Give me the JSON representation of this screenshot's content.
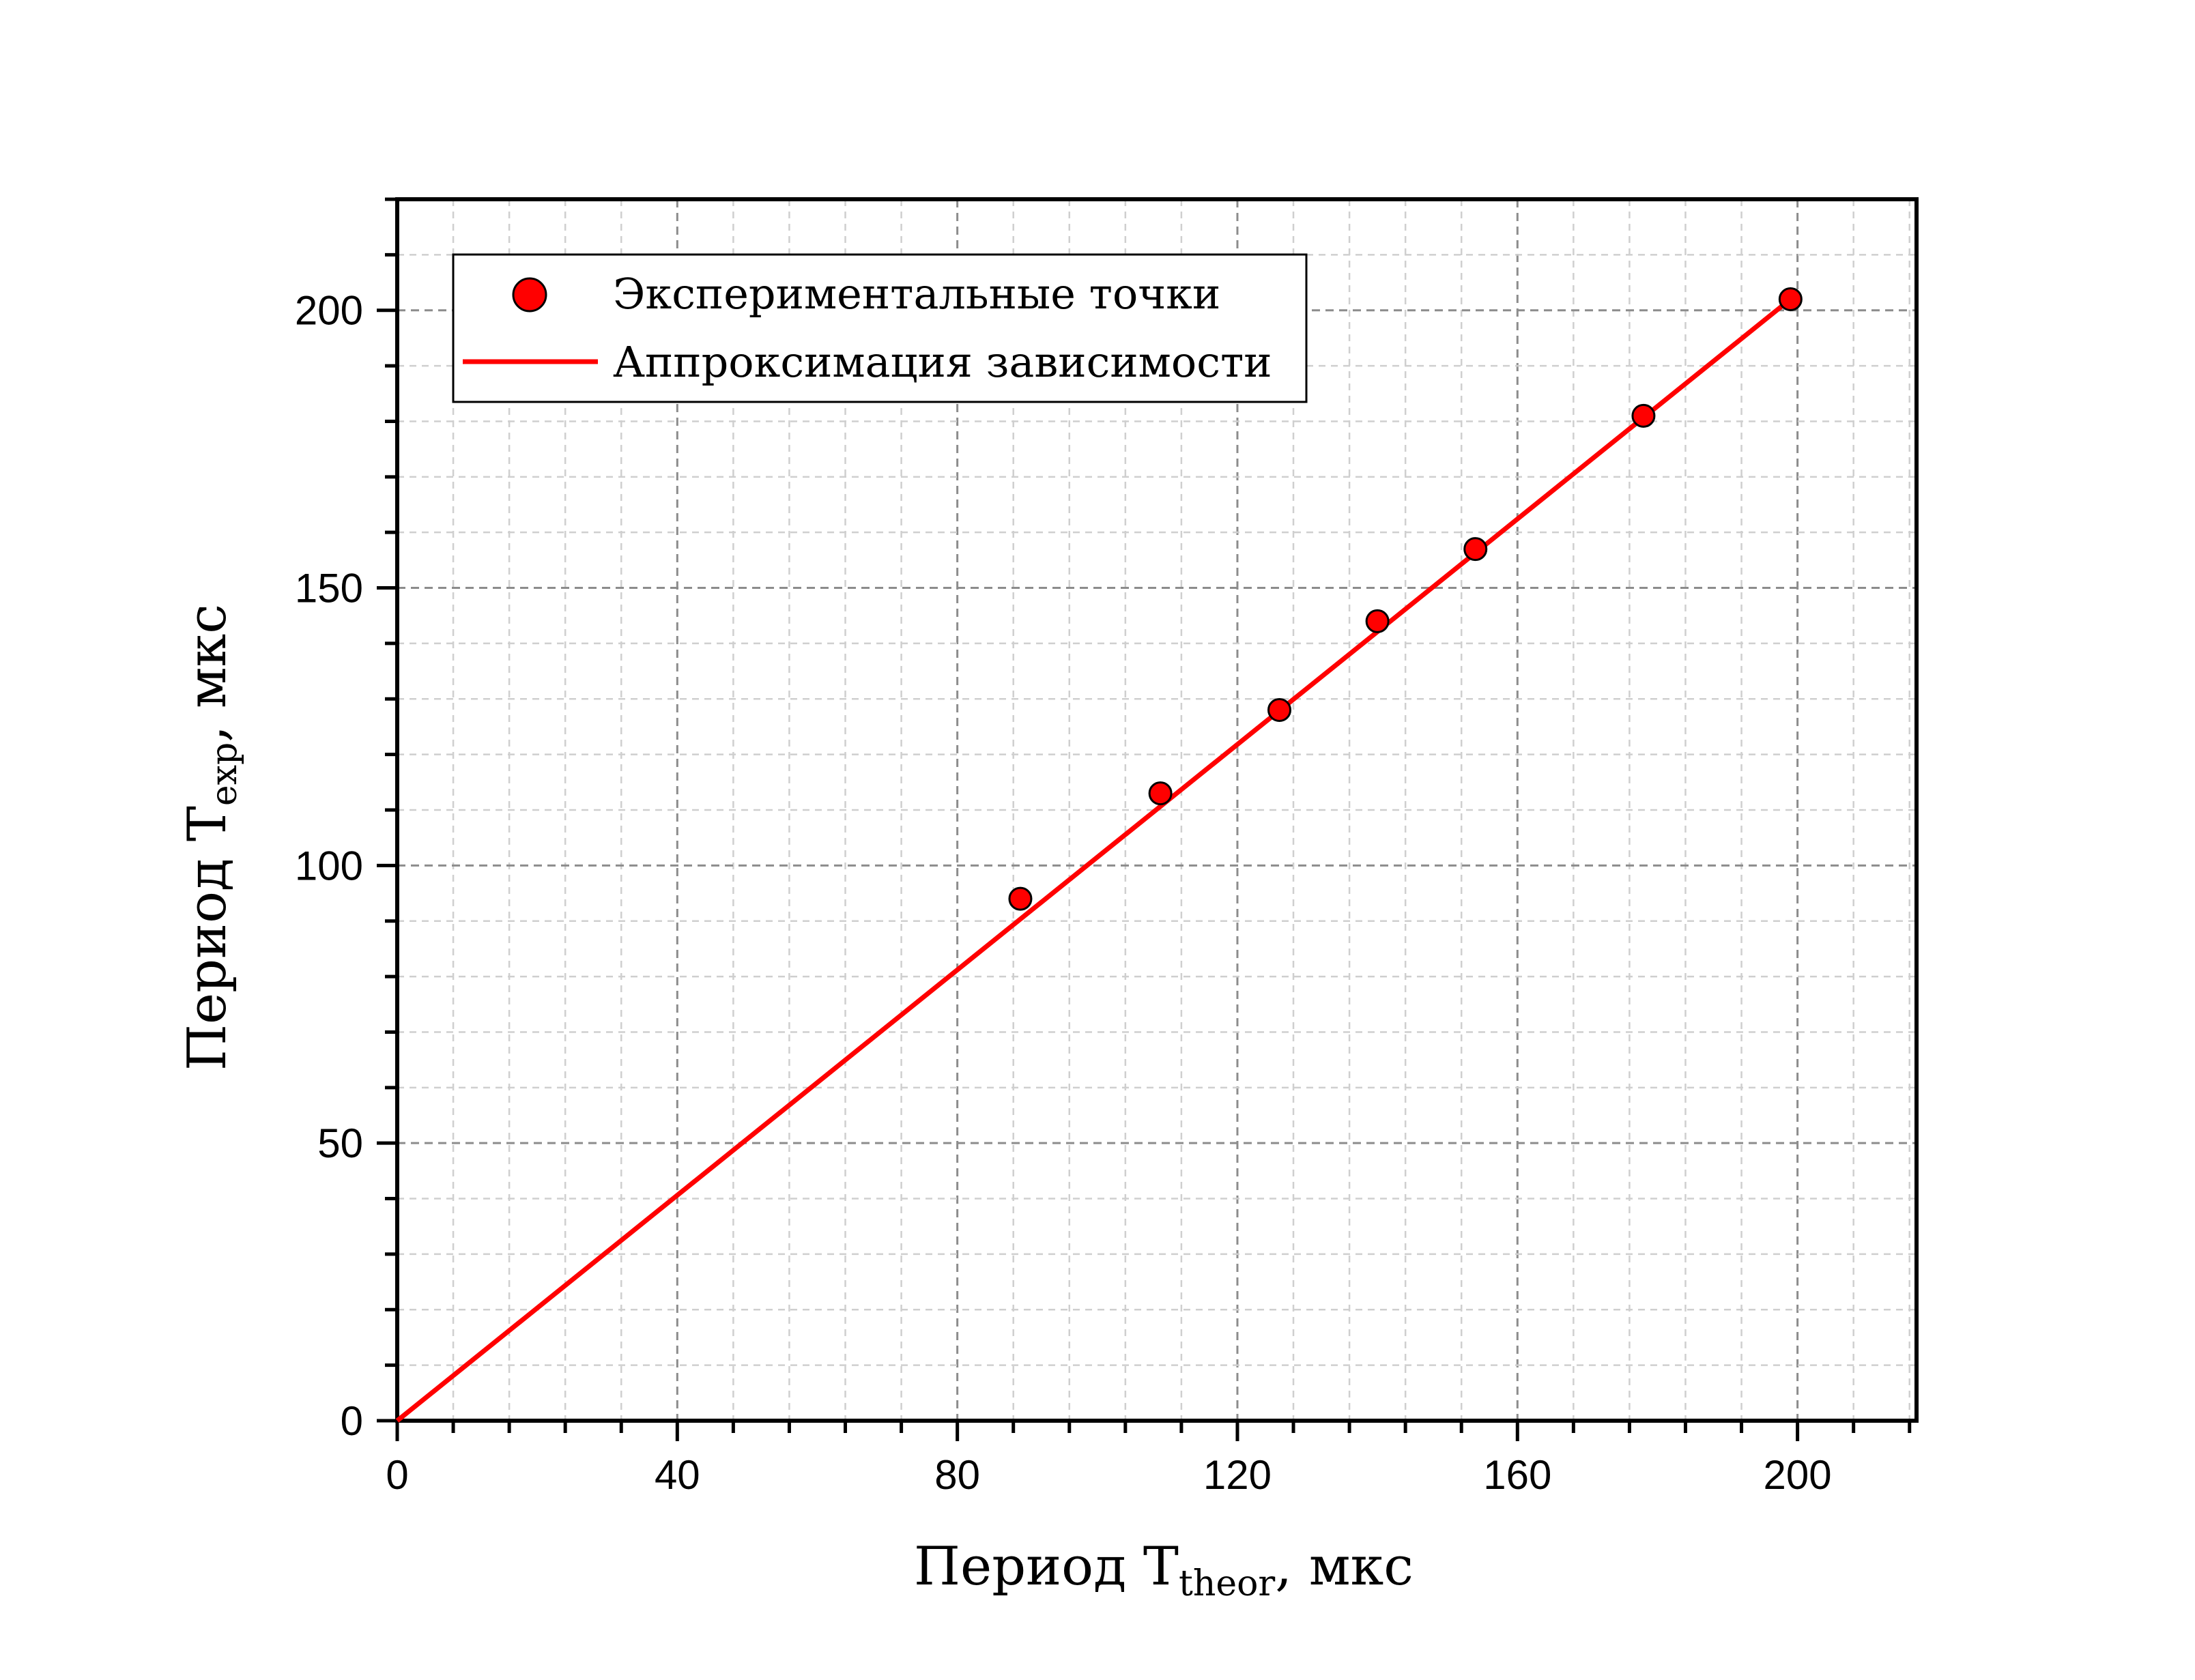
{
  "chart_data": {
    "type": "scatter",
    "x_axis": {
      "label_main": "Период T",
      "label_sub": "theor",
      "label_unit": ", мкс",
      "range": [
        0,
        217
      ],
      "ticks": [
        0,
        40,
        80,
        120,
        160,
        200
      ],
      "tick_labels": [
        "0",
        "40",
        "80",
        "120",
        "160",
        "200"
      ]
    },
    "y_axis": {
      "label_main": "Период T",
      "label_sub": "exp",
      "label_unit": ", мкс",
      "range": [
        0,
        220
      ],
      "ticks": [
        0,
        50,
        100,
        150,
        200
      ],
      "tick_labels": [
        "0",
        "50",
        "100",
        "150",
        "200"
      ]
    },
    "grid": true,
    "legend": {
      "position": "top-left"
    },
    "series": [
      {
        "name": "Экспериментальные точки",
        "kind": "points",
        "color": "#ff0000",
        "x": [
          89,
          109,
          126,
          140,
          154,
          178,
          199
        ],
        "y": [
          94,
          113,
          128,
          144,
          157,
          181,
          202
        ]
      },
      {
        "name": "Аппроксимация зависимости",
        "kind": "line",
        "color": "#ff0000",
        "x": [
          0,
          199
        ],
        "y": [
          0,
          202
        ]
      }
    ]
  }
}
